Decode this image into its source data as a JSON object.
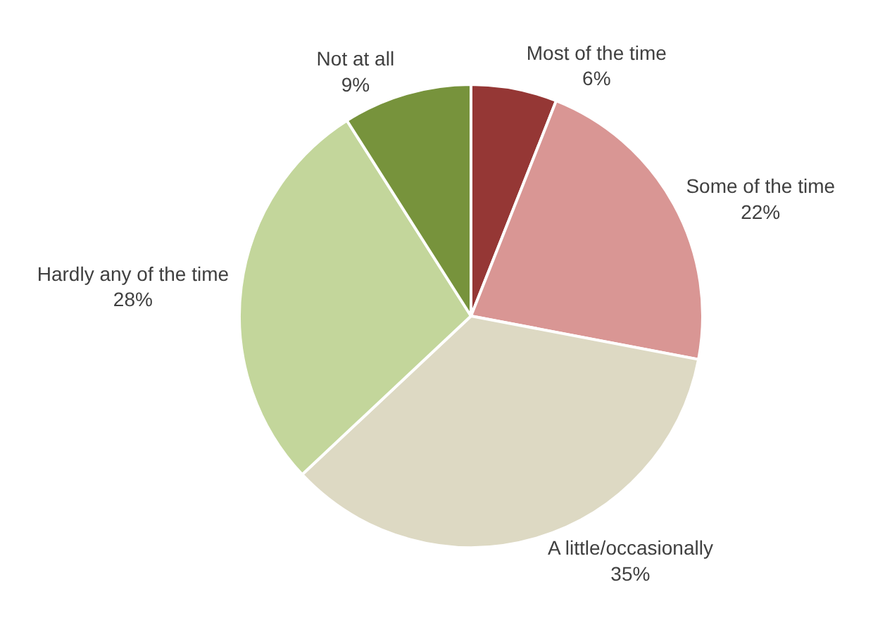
{
  "chart_data": {
    "type": "pie",
    "categories": [
      "Most of the time",
      "Some of the time",
      "A little/occasionally",
      "Hardly any of the time",
      "Not at all"
    ],
    "values": [
      6,
      22,
      35,
      28,
      9
    ],
    "value_labels": [
      "6%",
      "22%",
      "35%",
      "28%",
      "9%"
    ],
    "colors": [
      "#953735",
      "#d99694",
      "#ddd9c3",
      "#c3d69b",
      "#77933c"
    ],
    "legend": false
  }
}
